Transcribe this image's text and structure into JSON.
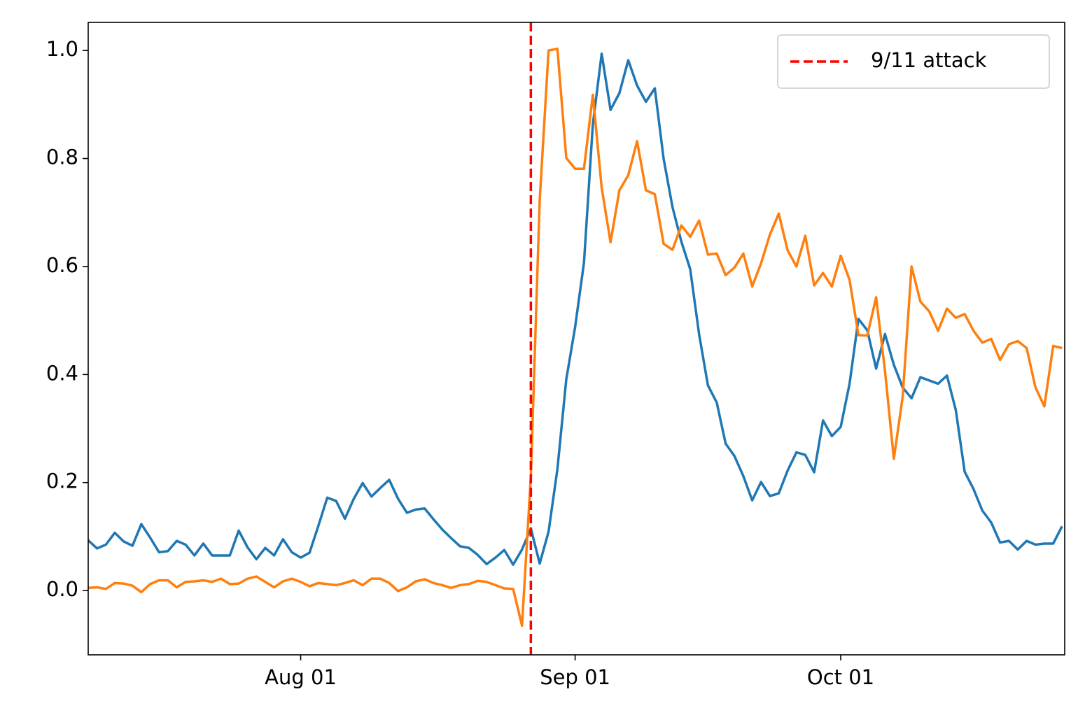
{
  "chart_data": {
    "type": "line",
    "x": [
      "Jul 08",
      "Jul 09",
      "Jul 10",
      "Jul 11",
      "Jul 12",
      "Jul 13",
      "Jul 14",
      "Jul 15",
      "Jul 16",
      "Jul 17",
      "Jul 18",
      "Jul 19",
      "Jul 20",
      "Jul 21",
      "Jul 22",
      "Jul 23",
      "Jul 24",
      "Jul 25",
      "Jul 26",
      "Jul 27",
      "Jul 28",
      "Jul 29",
      "Jul 30",
      "Jul 31",
      "Aug 01",
      "Aug 02",
      "Aug 03",
      "Aug 04",
      "Aug 05",
      "Aug 06",
      "Aug 07",
      "Aug 08",
      "Aug 09",
      "Aug 10",
      "Aug 11",
      "Aug 12",
      "Aug 13",
      "Aug 14",
      "Aug 15",
      "Aug 16",
      "Aug 17",
      "Aug 18",
      "Aug 19",
      "Aug 20",
      "Aug 21",
      "Aug 22",
      "Aug 23",
      "Aug 24",
      "Aug 25",
      "Aug 26",
      "Aug 27",
      "Aug 28",
      "Aug 29",
      "Aug 30",
      "Aug 31",
      "Sep 01",
      "Sep 02",
      "Sep 03",
      "Sep 04",
      "Sep 05",
      "Sep 06",
      "Sep 07",
      "Sep 08",
      "Sep 09",
      "Sep 10",
      "Sep 11",
      "Sep 12",
      "Sep 13",
      "Sep 14",
      "Sep 15",
      "Sep 16",
      "Sep 17",
      "Sep 18",
      "Sep 19",
      "Sep 20",
      "Sep 21",
      "Sep 22",
      "Sep 23",
      "Sep 24",
      "Sep 25",
      "Sep 26",
      "Sep 27",
      "Sep 28",
      "Sep 29",
      "Sep 30",
      "Oct 01",
      "Oct 02",
      "Oct 03",
      "Oct 04",
      "Oct 05",
      "Oct 06",
      "Oct 07",
      "Oct 08",
      "Oct 09",
      "Oct 10",
      "Oct 11",
      "Oct 12",
      "Oct 13",
      "Oct 14",
      "Oct 15",
      "Oct 16",
      "Oct 17",
      "Oct 18",
      "Oct 19",
      "Oct 20",
      "Oct 21",
      "Oct 22",
      "Oct 23",
      "Oct 24",
      "Oct 25",
      "Oct 26"
    ],
    "series": [
      {
        "color": "#1f77b4",
        "values": [
          0.093,
          0.078,
          0.085,
          0.107,
          0.091,
          0.083,
          0.123,
          0.098,
          0.071,
          0.073,
          0.092,
          0.085,
          0.065,
          0.087,
          0.065,
          0.065,
          0.065,
          0.111,
          0.08,
          0.058,
          0.079,
          0.065,
          0.095,
          0.071,
          0.061,
          0.07,
          0.12,
          0.172,
          0.166,
          0.133,
          0.17,
          0.199,
          0.174,
          0.19,
          0.205,
          0.17,
          0.144,
          0.15,
          0.152,
          0.132,
          0.113,
          0.097,
          0.082,
          0.079,
          0.066,
          0.049,
          0.061,
          0.075,
          0.048,
          0.076,
          0.115,
          0.05,
          0.109,
          0.225,
          0.391,
          0.488,
          0.607,
          0.863,
          0.994,
          0.89,
          0.921,
          0.982,
          0.935,
          0.905,
          0.93,
          0.799,
          0.71,
          0.646,
          0.595,
          0.475,
          0.38,
          0.348,
          0.272,
          0.249,
          0.212,
          0.167,
          0.201,
          0.175,
          0.18,
          0.222,
          0.256,
          0.251,
          0.219,
          0.315,
          0.286,
          0.303,
          0.383,
          0.503,
          0.482,
          0.411,
          0.475,
          0.418,
          0.376,
          0.356,
          0.395,
          0.389,
          0.383,
          0.398,
          0.334,
          0.22,
          0.188,
          0.148,
          0.126,
          0.089,
          0.092,
          0.076,
          0.092,
          0.085,
          0.087,
          0.087,
          0.119
        ]
      },
      {
        "color": "#ff7f0e",
        "values": [
          0.005,
          0.006,
          0.003,
          0.014,
          0.013,
          0.009,
          -0.003,
          0.012,
          0.019,
          0.019,
          0.006,
          0.016,
          0.017,
          0.019,
          0.016,
          0.022,
          0.012,
          0.013,
          0.022,
          0.026,
          0.016,
          0.006,
          0.017,
          0.022,
          0.016,
          0.008,
          0.014,
          0.012,
          0.01,
          0.014,
          0.019,
          0.01,
          0.022,
          0.022,
          0.014,
          -0.001,
          0.006,
          0.017,
          0.021,
          0.014,
          0.01,
          0.005,
          0.01,
          0.012,
          0.018,
          0.016,
          0.01,
          0.004,
          0.003,
          -0.065,
          0.212,
          0.723,
          1.0,
          1.003,
          0.801,
          0.781,
          0.781,
          0.918,
          0.746,
          0.645,
          0.741,
          0.769,
          0.832,
          0.741,
          0.734,
          0.642,
          0.631,
          0.676,
          0.655,
          0.685,
          0.622,
          0.624,
          0.584,
          0.598,
          0.624,
          0.563,
          0.606,
          0.659,
          0.698,
          0.63,
          0.6,
          0.657,
          0.565,
          0.588,
          0.563,
          0.62,
          0.575,
          0.473,
          0.472,
          0.543,
          0.407,
          0.244,
          0.359,
          0.6,
          0.535,
          0.517,
          0.481,
          0.522,
          0.505,
          0.512,
          0.481,
          0.459,
          0.466,
          0.427,
          0.456,
          0.462,
          0.449,
          0.376,
          0.341,
          0.453,
          0.449
        ]
      }
    ],
    "vlines": [
      {
        "x": "Aug 27",
        "label": "9/11 attack",
        "color": "red",
        "style": "dashed"
      }
    ],
    "xlim": [
      "Jul 08",
      "Oct 26"
    ],
    "xticks": [
      "Aug 01",
      "Sep 01",
      "Oct 01"
    ],
    "ylim": [
      -0.119,
      1.052
    ],
    "yticks": [
      {
        "value": 0,
        "label": "0.0"
      },
      0.2,
      0.4,
      0.6,
      0.8,
      {
        "value": 1,
        "label": "1.0"
      }
    ],
    "legend": "upper right",
    "grid": false
  }
}
